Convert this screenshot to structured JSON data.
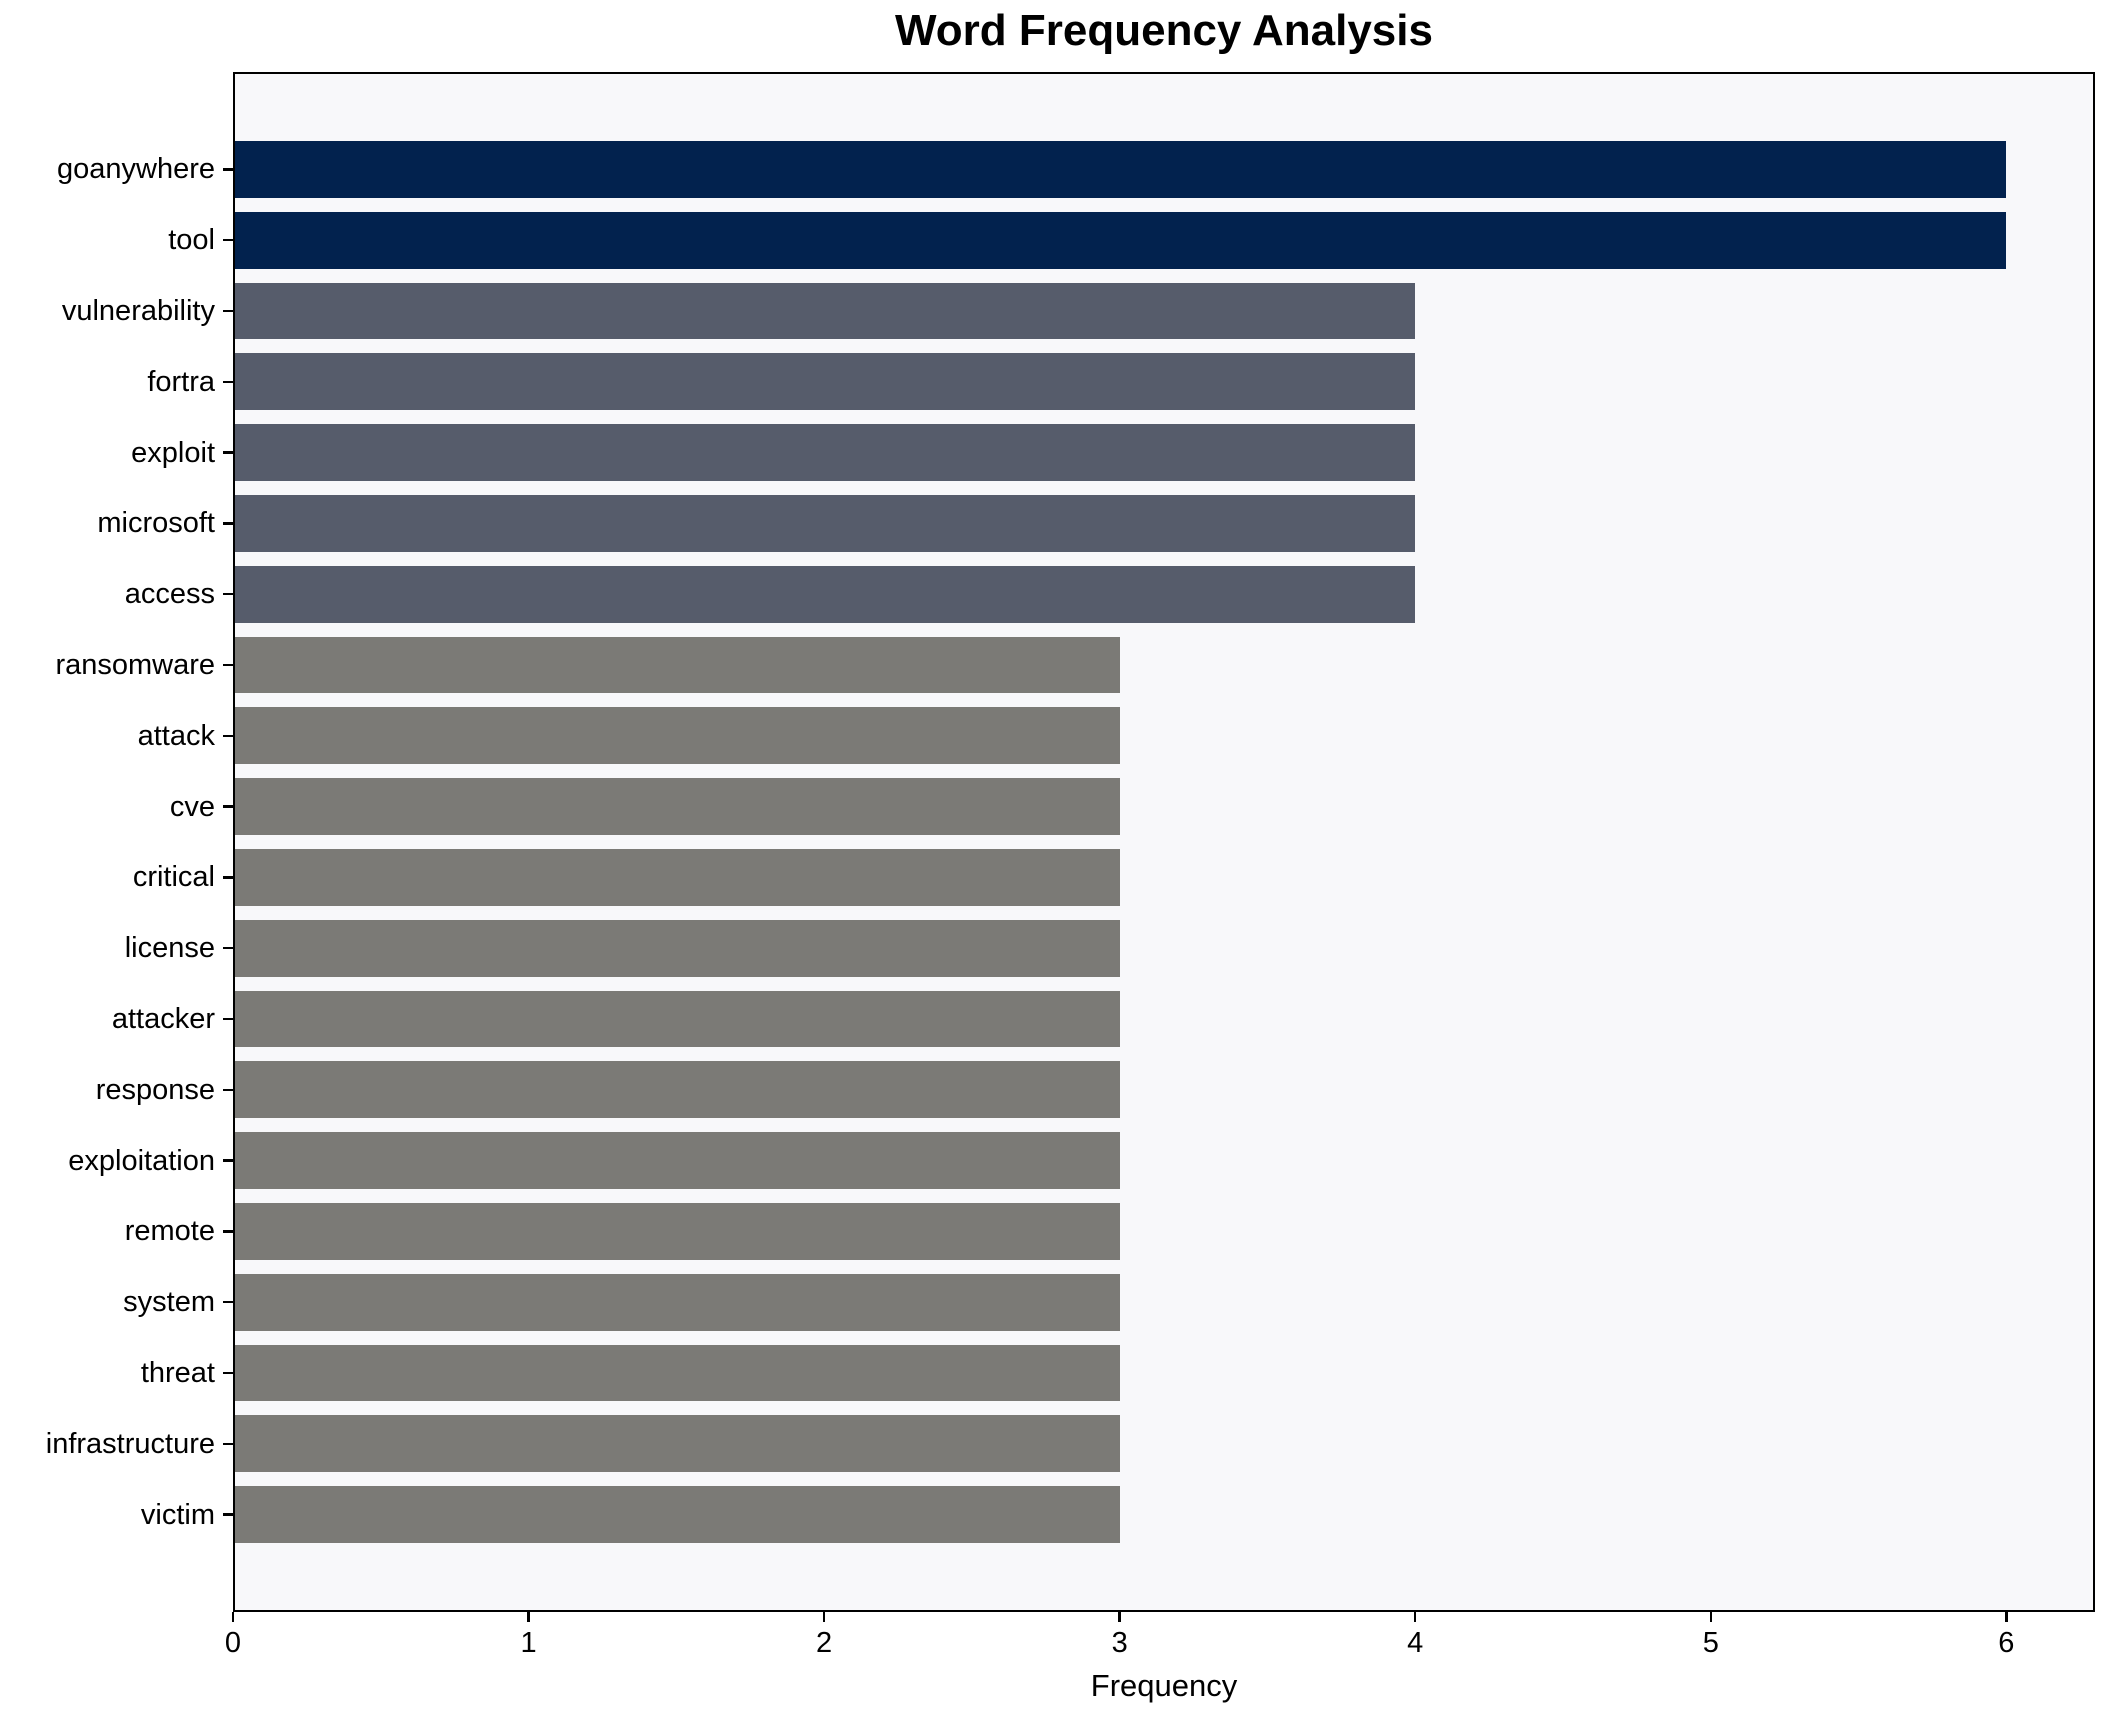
{
  "chart_data": {
    "type": "bar",
    "orientation": "horizontal",
    "title": "Word Frequency Analysis",
    "xlabel": "Frequency",
    "ylabel": "",
    "categories": [
      "goanywhere",
      "tool",
      "vulnerability",
      "fortra",
      "exploit",
      "microsoft",
      "access",
      "ransomware",
      "attack",
      "cve",
      "critical",
      "license",
      "attacker",
      "response",
      "exploitation",
      "remote",
      "system",
      "threat",
      "infrastructure",
      "victim"
    ],
    "values": [
      6,
      6,
      4,
      4,
      4,
      4,
      4,
      3,
      3,
      3,
      3,
      3,
      3,
      3,
      3,
      3,
      3,
      3,
      3,
      3
    ],
    "bar_colors": [
      "#02224e",
      "#02224e",
      "#565c6b",
      "#565c6b",
      "#565c6b",
      "#565c6b",
      "#565c6b",
      "#7b7a76",
      "#7b7a76",
      "#7b7a76",
      "#7b7a76",
      "#7b7a76",
      "#7b7a76",
      "#7b7a76",
      "#7b7a76",
      "#7b7a76",
      "#7b7a76",
      "#7b7a76",
      "#7b7a76",
      "#7b7a76"
    ],
    "x_ticks": [
      "0",
      "1",
      "2",
      "3",
      "4",
      "5",
      "6"
    ],
    "xlim": [
      0,
      6.3
    ],
    "grid": false,
    "legend": null,
    "colors": {
      "plot_background": "#f8f8fa",
      "figure_background": "#ffffff",
      "spine": "#000000",
      "text": "#000000"
    }
  }
}
